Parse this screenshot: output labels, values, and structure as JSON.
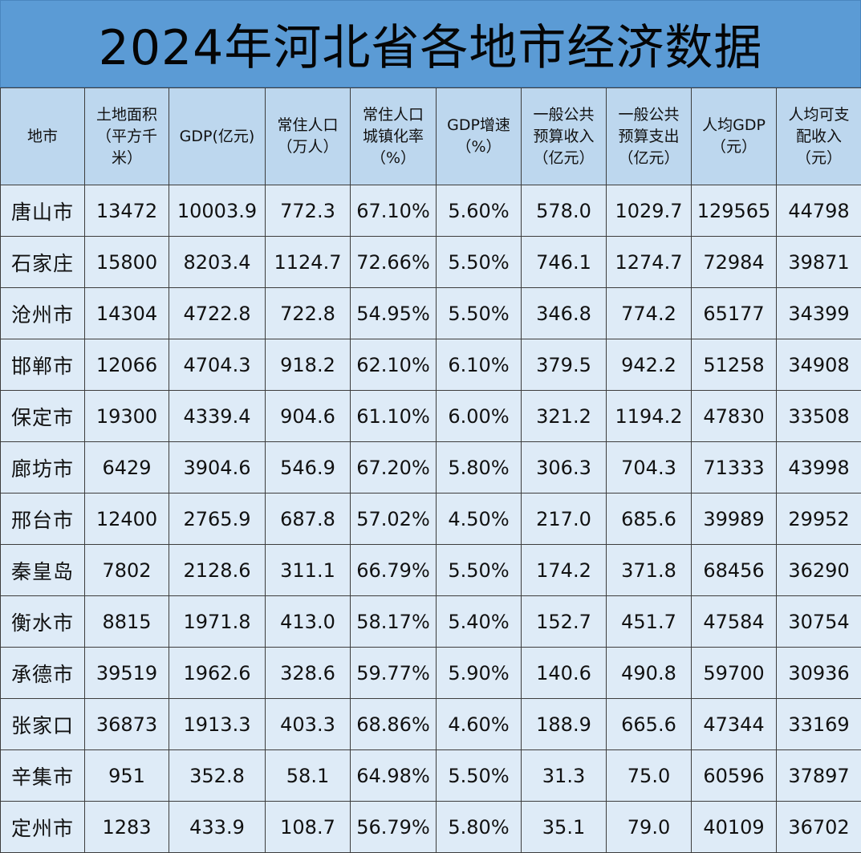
{
  "title": "2024年河北省各地市经济数据",
  "colors": {
    "title_background": "#5b9bd5",
    "header_background": "#bdd7ee",
    "cell_background": "#deebf7",
    "border": "#3d3d3d"
  },
  "chart_data": {
    "type": "table",
    "title": "2024年河北省各地市经济数据",
    "columns": [
      "地市",
      "土地面积\n（平方千\n米）",
      "GDP(亿元)",
      "常住人口\n（万人）",
      "常住人口\n城镇化率\n（%）",
      "GDP增速\n（%）",
      "一般公共\n预算收入\n（亿元）",
      "一般公共\n预算支出\n（亿元）",
      "人均GDP\n（元）",
      "人均可支\n配收入\n（元）"
    ],
    "rows": [
      [
        "唐山市",
        "13472",
        "10003.9",
        "772.3",
        "67.10%",
        "5.60%",
        "578.0",
        "1029.7",
        "129565",
        "44798"
      ],
      [
        "石家庄",
        "15800",
        "8203.4",
        "1124.7",
        "72.66%",
        "5.50%",
        "746.1",
        "1274.7",
        "72984",
        "39871"
      ],
      [
        "沧州市",
        "14304",
        "4722.8",
        "722.8",
        "54.95%",
        "5.50%",
        "346.8",
        "774.2",
        "65177",
        "34399"
      ],
      [
        "邯郸市",
        "12066",
        "4704.3",
        "918.2",
        "62.10%",
        "6.10%",
        "379.5",
        "942.2",
        "51258",
        "34908"
      ],
      [
        "保定市",
        "19300",
        "4339.4",
        "904.6",
        "61.10%",
        "6.00%",
        "321.2",
        "1194.2",
        "47830",
        "33508"
      ],
      [
        "廊坊市",
        "6429",
        "3904.6",
        "546.9",
        "67.20%",
        "5.80%",
        "306.3",
        "704.3",
        "71333",
        "43998"
      ],
      [
        "邢台市",
        "12400",
        "2765.9",
        "687.8",
        "57.02%",
        "4.50%",
        "217.0",
        "685.6",
        "39989",
        "29952"
      ],
      [
        "秦皇岛",
        "7802",
        "2128.6",
        "311.1",
        "66.79%",
        "5.50%",
        "174.2",
        "371.8",
        "68456",
        "36290"
      ],
      [
        "衡水市",
        "8815",
        "1971.8",
        "413.0",
        "58.17%",
        "5.40%",
        "152.7",
        "451.7",
        "47584",
        "30754"
      ],
      [
        "承德市",
        "39519",
        "1962.6",
        "328.6",
        "59.77%",
        "5.90%",
        "140.6",
        "490.8",
        "59700",
        "30936"
      ],
      [
        "张家口",
        "36873",
        "1913.3",
        "403.3",
        "68.86%",
        "4.60%",
        "188.9",
        "665.6",
        "47344",
        "33169"
      ],
      [
        "辛集市",
        "951",
        "352.8",
        "58.1",
        "64.98%",
        "5.50%",
        "31.3",
        "75.0",
        "60596",
        "37897"
      ],
      [
        "定州市",
        "1283",
        "433.9",
        "108.7",
        "56.79%",
        "5.80%",
        "35.1",
        "79.0",
        "40109",
        "36702"
      ]
    ]
  }
}
